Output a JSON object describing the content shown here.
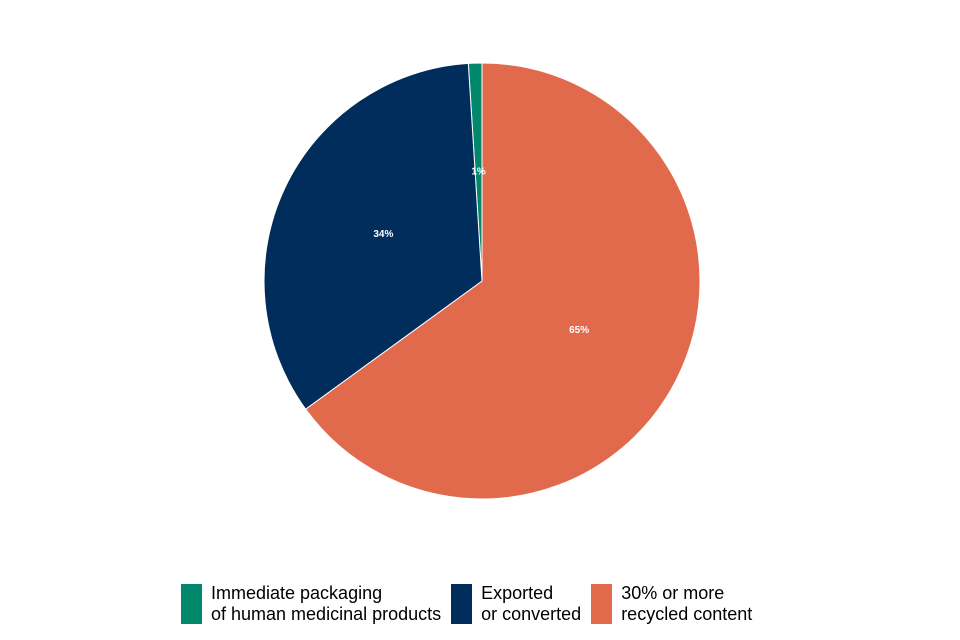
{
  "chart_data": {
    "type": "pie",
    "title": "",
    "slices": [
      {
        "label_lines": [
          "Immediate packaging",
          "of human medicinal products"
        ],
        "value": 1,
        "value_label": "1%",
        "color": "#00876C"
      },
      {
        "label_lines": [
          "30% or more",
          "recycled content"
        ],
        "value": 65,
        "value_label": "65%",
        "color": "#E16A4C"
      },
      {
        "label_lines": [
          "Exported",
          "or converted"
        ],
        "value": 34,
        "value_label": "34%",
        "color": "#002D5C"
      }
    ],
    "slice_border_color": "#FFFFFF",
    "legend": {
      "position": "bottom",
      "entries": [
        {
          "lines": [
            "Immediate packaging",
            "of human medicinal products"
          ],
          "color": "#00876C"
        },
        {
          "lines": [
            "Exported",
            "or converted"
          ],
          "color": "#002D5C"
        },
        {
          "lines": [
            "30% or more",
            "recycled content"
          ],
          "color": "#E16A4C"
        }
      ]
    }
  }
}
